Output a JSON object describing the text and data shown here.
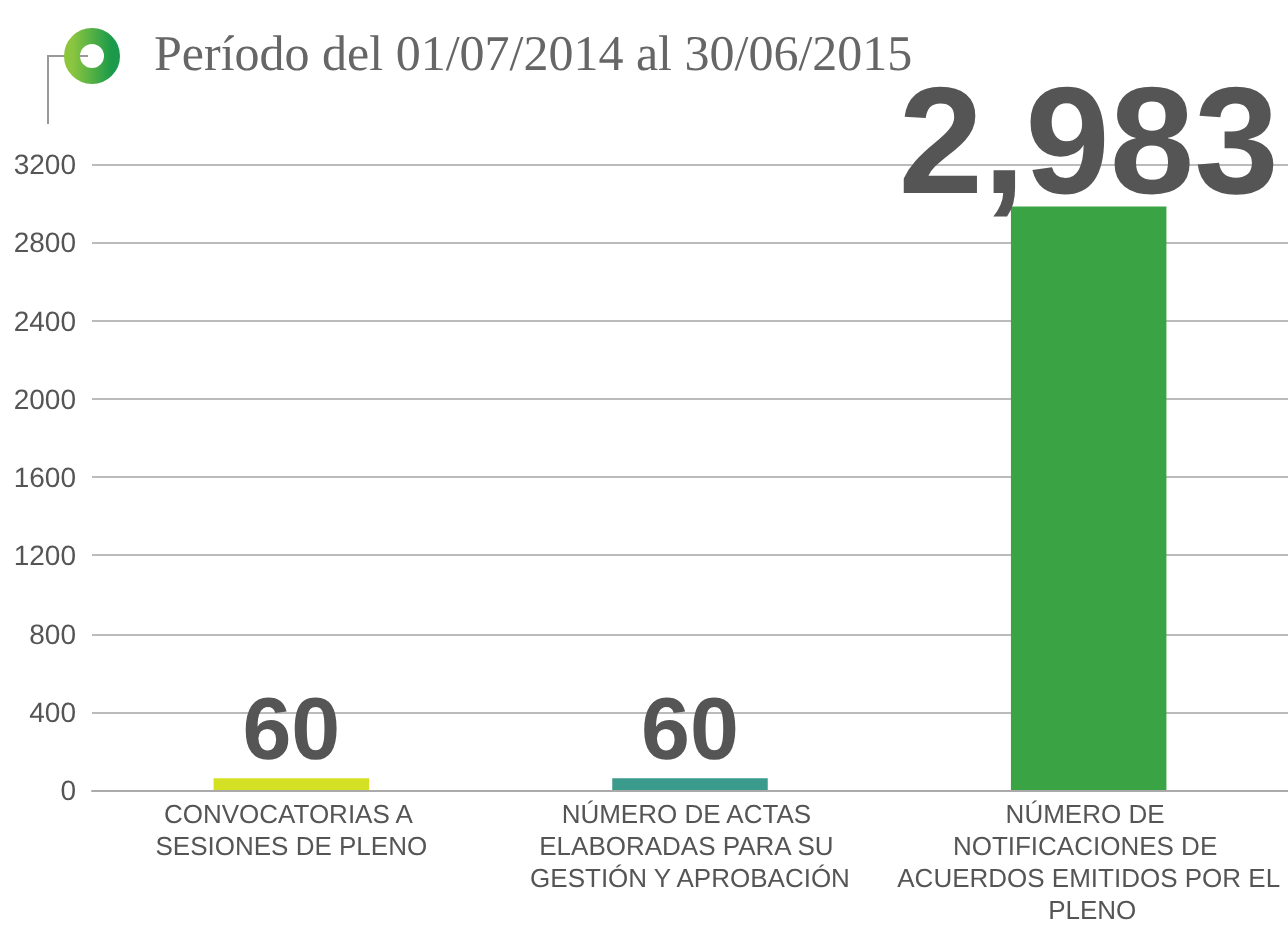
{
  "chart_data": {
    "type": "bar",
    "title": "Período del 01/07/2014 al 30/06/2015",
    "categories": [
      "CONVOCATORIAS A SESIONES DE PLENO",
      "NÚMERO DE ACTAS ELABORADAS PARA SU GESTIÓN Y APROBACIÓN",
      "NÚMERO DE NOTIFICACIONES DE ACUERDOS EMITIDOS POR EL PLENO"
    ],
    "values": [
      60,
      60,
      2983
    ],
    "colors": [
      "#d4e024",
      "#3a9a8c",
      "#3aa444"
    ],
    "value_labels": [
      "60",
      "60",
      "2,983"
    ],
    "ylim": [
      0,
      3200
    ],
    "yticks": [
      0,
      400,
      800,
      1200,
      1600,
      2000,
      2400,
      2800,
      3200
    ],
    "grid": "y"
  }
}
